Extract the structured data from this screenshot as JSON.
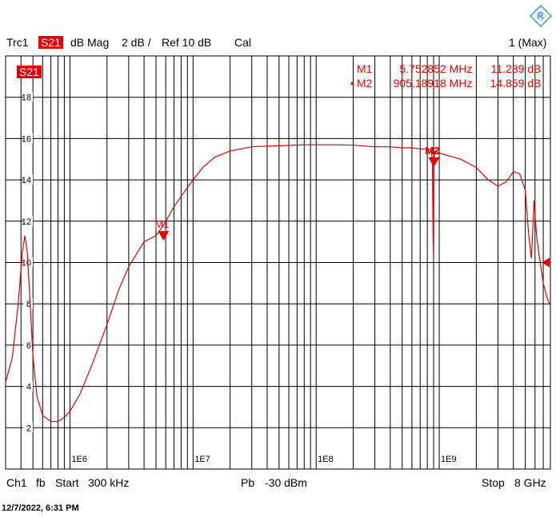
{
  "header": {
    "trace": "Trc1",
    "param": "S21",
    "format": "dB Mag",
    "scale": "2 dB /",
    "ref": "Ref 10 dB",
    "cal": "Cal",
    "channel_info": "1 (Max)"
  },
  "trace_tag": "S21",
  "markers": [
    {
      "name": "M1",
      "freq": "5.752852 MHz",
      "value": "11.289 dB",
      "active": false
    },
    {
      "name": "M2",
      "freq": "905.18918 MHz",
      "value": "14.859 dB",
      "active": true
    }
  ],
  "footer": {
    "channel": "Ch1",
    "fb": "fb",
    "start_label": "Start",
    "start_value": "300 kHz",
    "power_label": "Pb",
    "power_value": "-30 dBm",
    "stop_label": "Stop",
    "stop_value": "8 GHz"
  },
  "timestamp": "12/7/2022, 6:31 PM",
  "colors": {
    "trace": "#e60000",
    "grid": "#000000",
    "background": "#ffffff"
  },
  "chart_data": {
    "type": "line",
    "xscale": "log",
    "xlim": [
      300000,
      8000000000
    ],
    "ylim": [
      0,
      20
    ],
    "yticks": [
      2,
      4,
      6,
      8,
      10,
      12,
      14,
      16,
      18
    ],
    "xtick_labels": [
      {
        "x": 1000000,
        "label": "1E6"
      },
      {
        "x": 10000000,
        "label": "1E7"
      },
      {
        "x": 100000000,
        "label": "1E8"
      },
      {
        "x": 1000000000,
        "label": "1E9"
      }
    ],
    "grid": true,
    "series": [
      {
        "x": [
          300000,
          340000,
          380000,
          410000,
          430000,
          450000,
          470000,
          500000,
          540000,
          600000,
          700000,
          800000,
          900000,
          1000000,
          1200000,
          1500000,
          2000000,
          2500000,
          3000000,
          4000000,
          5000000,
          5750000,
          7000000,
          8000000,
          10000000,
          12000000,
          15000000,
          20000000,
          30000000,
          50000000,
          80000000,
          100000000,
          150000000,
          200000000,
          300000000,
          400000000,
          500000000,
          600000000,
          700000000,
          800000000,
          860000000,
          880000000,
          890000000,
          900000000,
          905000000,
          915000000,
          930000000,
          1000000000,
          1500000000,
          2000000000,
          2500000000,
          3000000000,
          3500000000,
          4000000000,
          4500000000,
          5000000000,
          5300000000,
          5600000000,
          5800000000,
          5900000000,
          6000000000,
          6200000000,
          6500000000,
          7000000000,
          7500000000,
          8000000000
        ],
        "y": [
          4.2,
          5.4,
          8.0,
          10.5,
          11.3,
          10.5,
          8.5,
          5.5,
          3.5,
          2.6,
          2.3,
          2.3,
          2.5,
          2.8,
          3.6,
          5.0,
          7.0,
          8.7,
          9.8,
          11.0,
          11.3,
          11.8,
          12.7,
          13.2,
          14.0,
          14.6,
          15.1,
          15.4,
          15.6,
          15.65,
          15.7,
          15.7,
          15.7,
          15.68,
          15.6,
          15.6,
          15.55,
          15.55,
          15.5,
          15.5,
          15.45,
          14.9,
          11.5,
          10.1,
          14.8,
          15.35,
          15.4,
          15.3,
          15.0,
          14.6,
          14.0,
          13.7,
          13.9,
          14.4,
          14.3,
          13.5,
          11.5,
          10.2,
          12.0,
          13.0,
          12.3,
          11.2,
          10.3,
          9.0,
          8.3,
          7.9
        ]
      }
    ],
    "markers": [
      {
        "name": "M1",
        "x": 5752852,
        "y": 11.289
      },
      {
        "name": "M2",
        "x": 905189180,
        "y": 14.859
      }
    ],
    "reference_level": 10
  }
}
